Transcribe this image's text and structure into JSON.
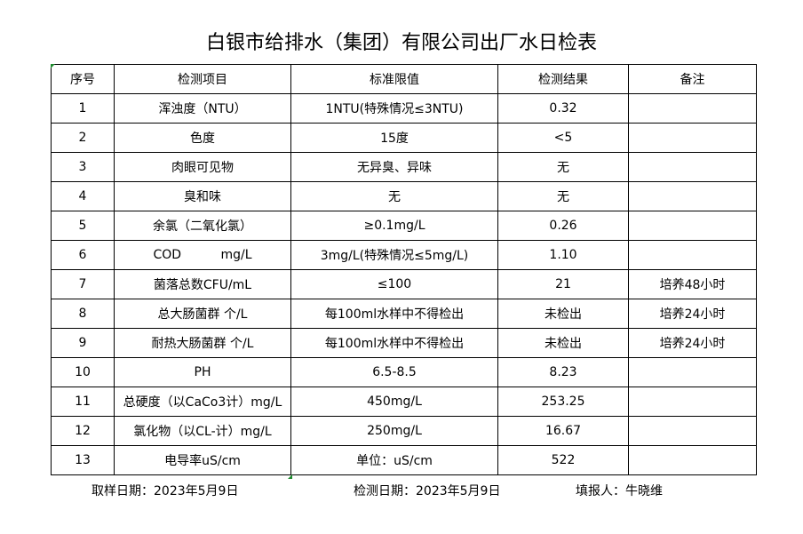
{
  "title": "白银市给排水（集团）有限公司出厂水日检表",
  "table": {
    "headers": [
      "序号",
      "检测项目",
      "标准限值",
      "检测结果",
      "备注"
    ],
    "rows": [
      [
        "1",
        "浑浊度（NTU）",
        "1NTU(特殊情况≤3NTU)",
        "0.32",
        ""
      ],
      [
        "2",
        "色度",
        "15度",
        "<5",
        ""
      ],
      [
        "3",
        "肉眼可见物",
        "无异臭、异味",
        "无",
        ""
      ],
      [
        "4",
        "臭和味",
        "无",
        "无",
        ""
      ],
      [
        "5",
        "余氯（二氧化氯）",
        "≥0.1mg/L",
        "0.26",
        ""
      ],
      [
        "6",
        "COD          mg/L",
        "3mg/L(特殊情况≤5mg/L)",
        "1.10",
        ""
      ],
      [
        "7",
        "菌落总数CFU/mL",
        "≤100",
        "21",
        "培养48小时"
      ],
      [
        "8",
        "总大肠菌群 个/L",
        "每100ml水样中不得检出",
        "未检出",
        "培养24小时"
      ],
      [
        "9",
        "耐热大肠菌群 个/L",
        "每100ml水样中不得检出",
        "未检出",
        "培养24小时"
      ],
      [
        "10",
        "PH",
        "6.5-8.5",
        "8.23",
        ""
      ],
      [
        "11",
        "总硬度（以CaCo3计）mg/L",
        "450mg/L",
        "253.25",
        ""
      ],
      [
        "12",
        "氯化物（以CL-计）mg/L",
        "250mg/L",
        "16.67",
        ""
      ],
      [
        "13",
        "电导率uS/cm",
        "单位：uS/cm",
        "522",
        ""
      ]
    ]
  },
  "footer": {
    "sampling_date": "取样日期：2023年5月9日",
    "test_date": "检测日期：2023年5月9日",
    "reporter": "填报人：牛晓维"
  }
}
